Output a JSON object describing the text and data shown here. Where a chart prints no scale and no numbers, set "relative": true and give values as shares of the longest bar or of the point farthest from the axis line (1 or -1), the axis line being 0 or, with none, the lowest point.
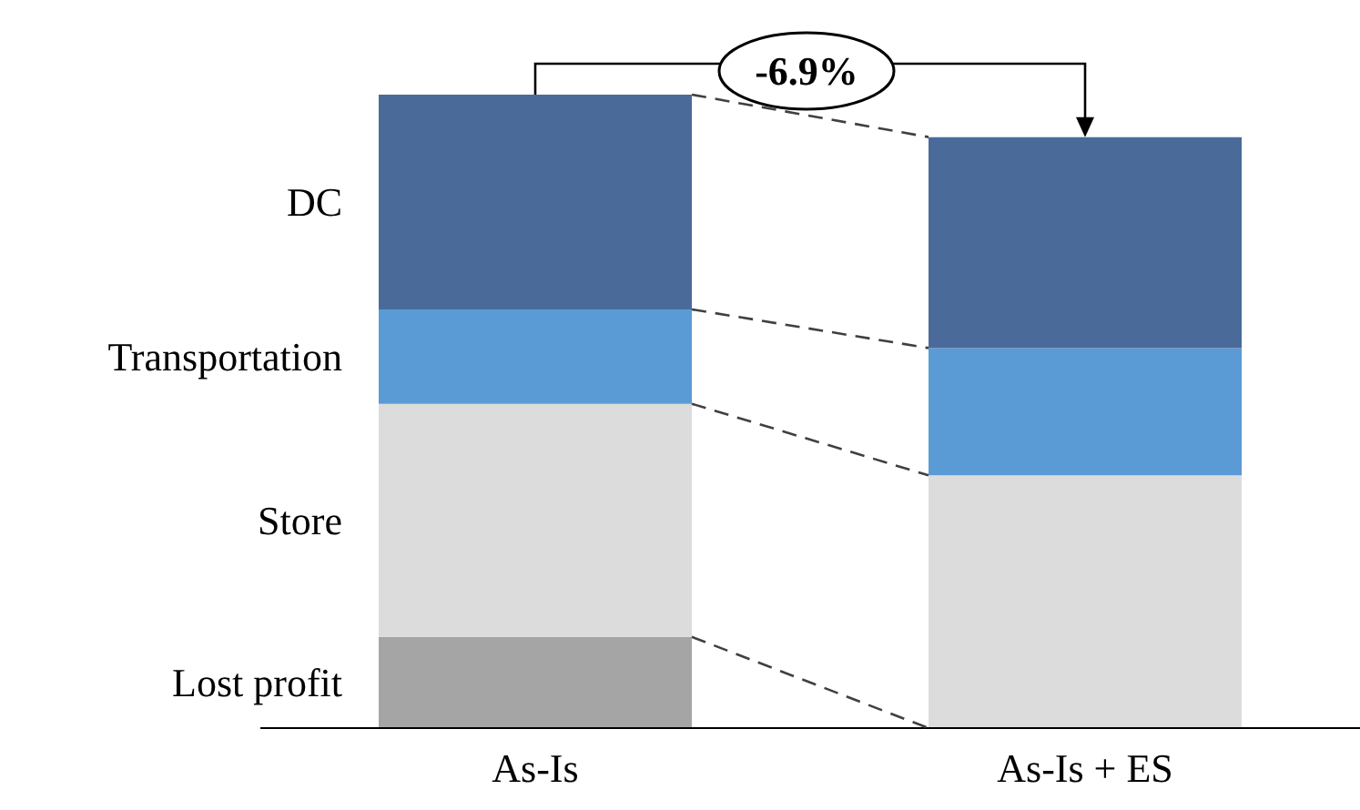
{
  "chart_data": {
    "type": "bar",
    "stacked": true,
    "relative": true,
    "categories": [
      "As-Is",
      "As-Is + ES"
    ],
    "series": [
      {
        "name": "Lost profit",
        "color": "#a5a5a5",
        "values": [
          0.144,
          0
        ]
      },
      {
        "name": "Store",
        "color": "#dcdcdc",
        "values": [
          0.368,
          0.399
        ]
      },
      {
        "name": "Transportation",
        "color": "#5b9bd5",
        "values": [
          0.149,
          0.201
        ]
      },
      {
        "name": "DC",
        "color": "#4a6a9a",
        "values": [
          0.339,
          0.333
        ]
      }
    ],
    "annotations": [
      "-6.9%"
    ]
  }
}
